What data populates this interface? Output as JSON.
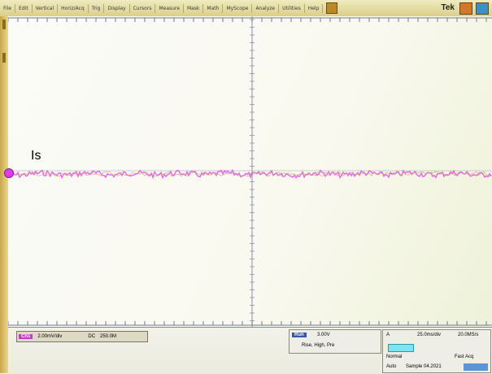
{
  "menu": {
    "items": [
      "File",
      "Edit",
      "Vertical",
      "Horiz/Acq",
      "Trig",
      "Display",
      "Cursors",
      "Measure",
      "Mask",
      "Math",
      "MyScope",
      "Analyze",
      "Utilities",
      "Help"
    ],
    "brand": "Tek"
  },
  "trace": {
    "label": "Is",
    "color": "#e23be8",
    "noise_color": "#c49a5f"
  },
  "status": {
    "channel_tag": "Ch1",
    "channel_scale": "2.00mV/div",
    "channel_coupling": "DC",
    "channel_extra": "250.0M",
    "run_label": "Run",
    "trigger_value": "3.00V",
    "trigger_line2": "Rise, High, Pre",
    "horiz_label": "A",
    "horiz_scale": "25.0ms/div",
    "horiz_rate": "20.0MS/s",
    "horiz_mode": "Normal",
    "horiz_detail": "Fast Acq",
    "horiz_timebase": "Auto",
    "horiz_timestamp": "Sample 04.2021"
  }
}
